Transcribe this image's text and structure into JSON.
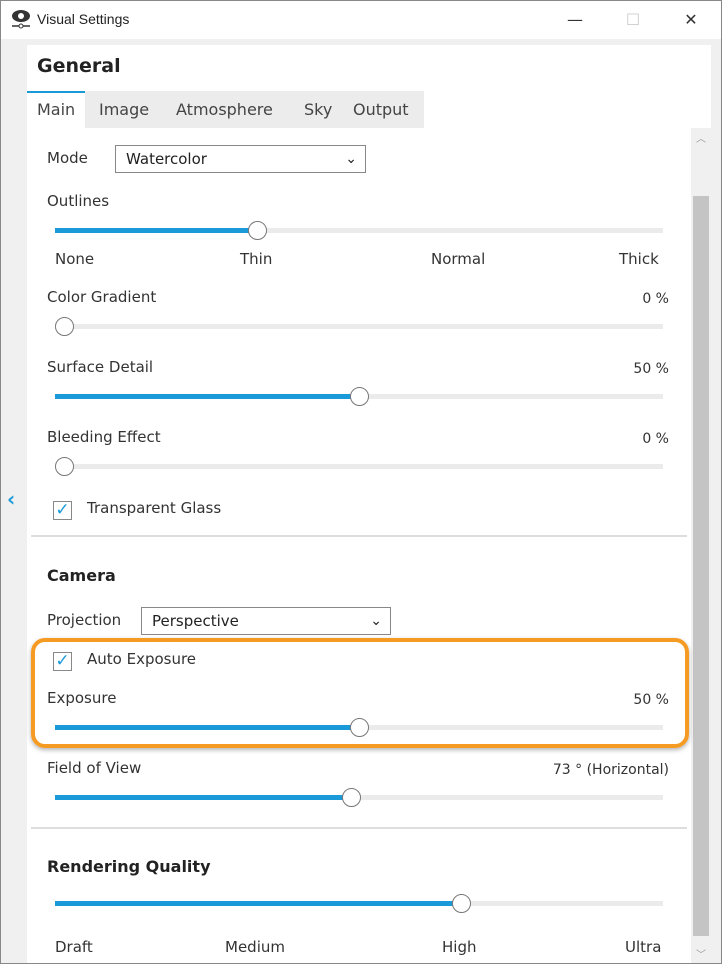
{
  "window": {
    "title": "Visual Settings",
    "icon": "eye-icon",
    "minimize": "—",
    "maximize": "☐",
    "close": "✕"
  },
  "header": "General",
  "tabs": [
    {
      "label": "Main",
      "active": true
    },
    {
      "label": "Image"
    },
    {
      "label": "Atmosphere"
    },
    {
      "label": "Sky"
    },
    {
      "label": "Output"
    }
  ],
  "mode": {
    "label": "Mode",
    "value": "Watercolor"
  },
  "outlines": {
    "label": "Outlines",
    "level": 0.333,
    "ticks": [
      "None",
      "Thin",
      "Normal",
      "Thick"
    ]
  },
  "color_gradient": {
    "label": "Color Gradient",
    "value_text": "0 %",
    "value": 0
  },
  "surface_detail": {
    "label": "Surface Detail",
    "value_text": "50 %",
    "value": 0.5
  },
  "bleeding_effect": {
    "label": "Bleeding Effect",
    "value_text": "0 %",
    "value": 0
  },
  "transparent_glass": {
    "label": "Transparent Glass",
    "checked": true
  },
  "camera": {
    "title": "Camera",
    "projection_label": "Projection",
    "projection_value": "Perspective",
    "auto_exposure": {
      "label": "Auto Exposure",
      "checked": true
    },
    "exposure": {
      "label": "Exposure",
      "value_text": "50 %",
      "value": 0.5
    },
    "fov": {
      "label": "Field of View",
      "value_text": "73 ° (Horizontal)",
      "value": 0.487
    }
  },
  "rendering_quality": {
    "title": "Rendering Quality",
    "level": 0.667,
    "ticks": [
      "Draft",
      "Medium",
      "High",
      "Ultra"
    ]
  },
  "colors": {
    "accent": "#1a9ad9",
    "highlight": "#f59a23"
  }
}
